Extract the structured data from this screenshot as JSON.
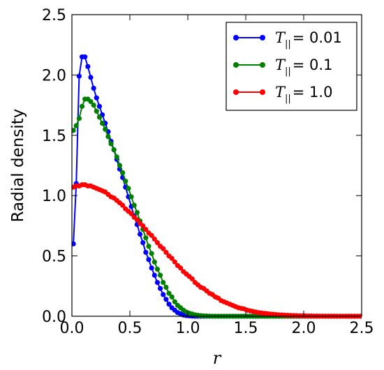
{
  "chart_data": {
    "type": "line",
    "xlabel": "r",
    "ylabel": "Radial density",
    "xlim": [
      0.0,
      2.5
    ],
    "ylim": [
      0.0,
      2.5
    ],
    "xticks": [
      "0.0",
      "0.5",
      "1.0",
      "1.5",
      "2.0",
      "2.5"
    ],
    "yticks": [
      "0.0",
      "0.5",
      "1.0",
      "1.5",
      "2.0",
      "2.5"
    ],
    "grid": false,
    "legend_position": "top-right",
    "x": [
      0.0125,
      0.0375,
      0.0625,
      0.0875,
      0.1125,
      0.1375,
      0.1625,
      0.1875,
      0.2125,
      0.2375,
      0.2625,
      0.2875,
      0.3125,
      0.3375,
      0.3625,
      0.3875,
      0.4125,
      0.4375,
      0.4625,
      0.4875,
      0.5125,
      0.5375,
      0.5625,
      0.5875,
      0.6125,
      0.6375,
      0.6625,
      0.6875,
      0.7125,
      0.7375,
      0.7625,
      0.7875,
      0.8125,
      0.8375,
      0.8625,
      0.8875,
      0.9125,
      0.9375,
      0.9625,
      0.9875,
      1.0125,
      1.0375,
      1.0625,
      1.0875,
      1.1125,
      1.1375,
      1.1625,
      1.1875,
      1.2125,
      1.2375,
      1.2625,
      1.2875,
      1.3125,
      1.3375,
      1.3625,
      1.3875,
      1.4125,
      1.4375,
      1.4625,
      1.4875,
      1.5125,
      1.5375,
      1.5625,
      1.5875,
      1.6125,
      1.6375,
      1.6625,
      1.6875,
      1.7125,
      1.7375,
      1.7625,
      1.7875,
      1.8125,
      1.8375,
      1.8625,
      1.8875,
      1.9125,
      1.9375,
      1.9625,
      1.9875,
      2.0125,
      2.0375,
      2.0625,
      2.0875,
      2.1125,
      2.1375,
      2.1625,
      2.1875,
      2.2125,
      2.2375,
      2.2625,
      2.2875,
      2.3125,
      2.3375,
      2.3625,
      2.3875,
      2.4125,
      2.4375,
      2.4625,
      2.4875
    ],
    "series": [
      {
        "name": "T_{||} = 0.01",
        "color": "#0000ff",
        "values": [
          0.6,
          1.1,
          1.99,
          2.15,
          2.15,
          2.07,
          1.98,
          1.89,
          1.81,
          1.74,
          1.67,
          1.6,
          1.53,
          1.45,
          1.38,
          1.3,
          1.22,
          1.15,
          1.07,
          0.99,
          0.91,
          0.83,
          0.76,
          0.68,
          0.61,
          0.53,
          0.47,
          0.4,
          0.34,
          0.28,
          0.23,
          0.18,
          0.14,
          0.1,
          0.07,
          0.05,
          0.03,
          0.02,
          0.01,
          0.005,
          0.003,
          0.001,
          0.0,
          0.0,
          0.0,
          0.0,
          0.0,
          0.0,
          0.0,
          0.0,
          0.0,
          0.0,
          0.0,
          0.0,
          0.0,
          0.0,
          0.0,
          0.0,
          0.0,
          0.0,
          0.0,
          0.0,
          0.0,
          0.0,
          0.0,
          0.0,
          0.0,
          0.0,
          0.0,
          0.0,
          0.0,
          0.0,
          0.0,
          0.0,
          0.0,
          0.0,
          0.0,
          0.0,
          0.0,
          0.0,
          0.0,
          0.0,
          0.0,
          0.0,
          0.0,
          0.0,
          0.0,
          0.0,
          0.0,
          0.0,
          0.0,
          0.0,
          0.0,
          0.0,
          0.0,
          0.0,
          0.0,
          0.0,
          0.0,
          0.0
        ]
      },
      {
        "name": "T_{||} = 0.1",
        "color": "#008000",
        "values": [
          1.54,
          1.58,
          1.64,
          1.74,
          1.8,
          1.8,
          1.78,
          1.75,
          1.7,
          1.65,
          1.6,
          1.55,
          1.49,
          1.43,
          1.38,
          1.32,
          1.25,
          1.19,
          1.12,
          1.06,
          0.99,
          0.92,
          0.86,
          0.79,
          0.72,
          0.65,
          0.58,
          0.52,
          0.45,
          0.39,
          0.34,
          0.28,
          0.24,
          0.19,
          0.16,
          0.12,
          0.09,
          0.07,
          0.05,
          0.035,
          0.025,
          0.018,
          0.012,
          0.008,
          0.005,
          0.003,
          0.002,
          0.001,
          0.0,
          0.0,
          0.0,
          0.0,
          0.0,
          0.0,
          0.0,
          0.0,
          0.0,
          0.0,
          0.0,
          0.0,
          0.0,
          0.0,
          0.0,
          0.0,
          0.0,
          0.0,
          0.0,
          0.0,
          0.0,
          0.0,
          0.0,
          0.0,
          0.0,
          0.0,
          0.0,
          0.0,
          0.0,
          0.0,
          0.0,
          0.0,
          0.0,
          0.0,
          0.0,
          0.0,
          0.0,
          0.0,
          0.0,
          0.0,
          0.0,
          0.0,
          0.0,
          0.0,
          0.0,
          0.0,
          0.0,
          0.0,
          0.0,
          0.0,
          0.0,
          0.0
        ]
      },
      {
        "name": "T_{||} = 1.0",
        "color": "#ff0000",
        "values": [
          1.07,
          1.08,
          1.08,
          1.09,
          1.09,
          1.08,
          1.08,
          1.07,
          1.06,
          1.05,
          1.04,
          1.03,
          1.01,
          0.99,
          0.98,
          0.96,
          0.94,
          0.92,
          0.89,
          0.87,
          0.85,
          0.82,
          0.8,
          0.77,
          0.75,
          0.72,
          0.69,
          0.67,
          0.64,
          0.61,
          0.58,
          0.56,
          0.53,
          0.5,
          0.48,
          0.45,
          0.42,
          0.4,
          0.37,
          0.35,
          0.33,
          0.31,
          0.28,
          0.26,
          0.24,
          0.23,
          0.21,
          0.19,
          0.18,
          0.16,
          0.15,
          0.13,
          0.12,
          0.11,
          0.1,
          0.09,
          0.08,
          0.07,
          0.065,
          0.06,
          0.05,
          0.045,
          0.04,
          0.035,
          0.03,
          0.027,
          0.024,
          0.021,
          0.018,
          0.016,
          0.014,
          0.012,
          0.011,
          0.009,
          0.008,
          0.007,
          0.006,
          0.005,
          0.004,
          0.0035,
          0.003,
          0.0025,
          0.002,
          0.0017,
          0.0014,
          0.0012,
          0.001,
          0.0008,
          0.0007,
          0.0006,
          0.0005,
          0.0004,
          0.0003,
          0.0003,
          0.0002,
          0.0002,
          0.0001,
          0.0001,
          0.0001,
          0.0001
        ]
      }
    ],
    "legend": {
      "entries": [
        {
          "label_main": "T",
          "label_sub": "||",
          "label_value": "= 0.01"
        },
        {
          "label_main": "T",
          "label_sub": "||",
          "label_value": "= 0.1"
        },
        {
          "label_main": "T",
          "label_sub": "||",
          "label_value": "= 1.0"
        }
      ]
    }
  }
}
